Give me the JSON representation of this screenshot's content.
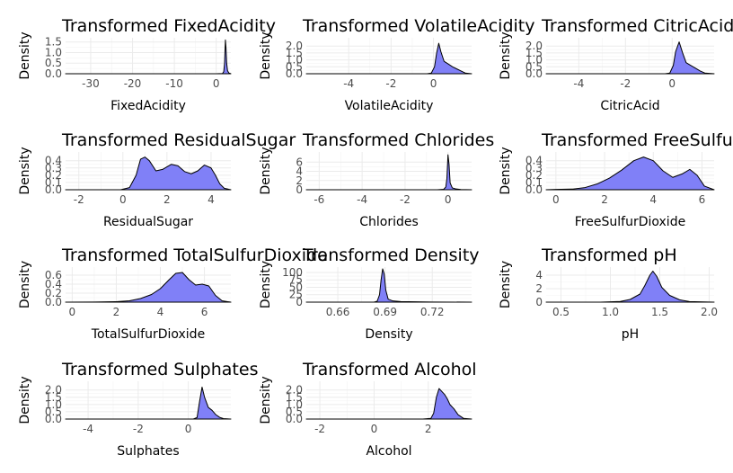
{
  "chart_data": [
    {
      "type": "area",
      "title": "Transformed FixedAcidity",
      "xlabel": "FixedAcidity",
      "ylabel": "Density",
      "xlim": [
        -36,
        3.5
      ],
      "ylim": [
        0,
        1.7
      ],
      "xticks": [
        -30,
        -20,
        -10,
        0
      ],
      "xtick_labels": [
        "-30",
        "-20",
        "-10",
        "0"
      ],
      "yticks": [
        0,
        0.5,
        1.0,
        1.5
      ],
      "ytick_labels": [
        "0.0",
        "0.5",
        "1.0",
        "1.5"
      ],
      "grid": true,
      "x": [
        -36,
        0,
        1.5,
        1.8,
        2.0,
        2.1,
        2.2,
        2.35,
        2.5,
        2.7,
        3.0,
        3.5
      ],
      "y": [
        0,
        0,
        0.01,
        0.1,
        0.5,
        1.1,
        1.6,
        1.2,
        0.5,
        0.15,
        0.04,
        0
      ]
    },
    {
      "type": "area",
      "title": "Transformed VolatileAcidity",
      "xlabel": "VolatileAcidity",
      "ylabel": "Density",
      "xlim": [
        -6,
        1.8
      ],
      "ylim": [
        0,
        2.6
      ],
      "xticks": [
        -4,
        -2,
        0
      ],
      "xtick_labels": [
        "-4",
        "-2",
        "0"
      ],
      "yticks": [
        0,
        0.5,
        1.0,
        1.5,
        2.0
      ],
      "ytick_labels": [
        "0.0",
        "0.5",
        "1.0",
        "1.5",
        "2.0"
      ],
      "grid": true,
      "x": [
        -6,
        -0.3,
        -0.1,
        0.05,
        0.15,
        0.25,
        0.35,
        0.5,
        0.7,
        0.9,
        1.1,
        1.3,
        1.5,
        1.8
      ],
      "y": [
        0,
        0,
        0.05,
        0.5,
        1.5,
        2.2,
        1.6,
        0.9,
        0.7,
        0.5,
        0.35,
        0.2,
        0.05,
        0
      ]
    },
    {
      "type": "area",
      "title": "Transformed CitricAcid",
      "xlabel": "CitricAcid",
      "ylabel": "Density",
      "xlim": [
        -5.4,
        1.8
      ],
      "ylim": [
        0,
        2.6
      ],
      "xticks": [
        -4,
        -2,
        0
      ],
      "xtick_labels": [
        "-4",
        "-2",
        "0"
      ],
      "yticks": [
        0,
        0.5,
        1.0,
        1.5,
        2.0
      ],
      "ytick_labels": [
        "0.0",
        "0.5",
        "1.0",
        "1.5",
        "2.0"
      ],
      "grid": true,
      "x": [
        -5.4,
        -0.3,
        -0.1,
        0.05,
        0.15,
        0.3,
        0.45,
        0.6,
        0.8,
        1.0,
        1.2,
        1.4,
        1.8
      ],
      "y": [
        0,
        0,
        0.05,
        0.6,
        1.6,
        2.3,
        1.5,
        0.8,
        0.6,
        0.4,
        0.2,
        0.05,
        0
      ]
    },
    {
      "type": "area",
      "title": "Transformed ResidualSugar",
      "xlabel": "ResidualSugar",
      "ylabel": "Density",
      "xlim": [
        -2.6,
        4.9
      ],
      "ylim": [
        0,
        0.52
      ],
      "xticks": [
        -2,
        0,
        2,
        4
      ],
      "xtick_labels": [
        "-2",
        "0",
        "2",
        "4"
      ],
      "yticks": [
        0,
        0.1,
        0.2,
        0.3,
        0.4
      ],
      "ytick_labels": [
        "0.0",
        "0.1",
        "0.2",
        "0.3",
        "0.4"
      ],
      "grid": true,
      "x": [
        -2.6,
        -0.1,
        0.3,
        0.6,
        0.8,
        1.0,
        1.2,
        1.5,
        1.8,
        2.2,
        2.5,
        2.8,
        3.1,
        3.4,
        3.7,
        4.0,
        4.2,
        4.4,
        4.6,
        4.9
      ],
      "y": [
        0,
        0,
        0.03,
        0.2,
        0.42,
        0.45,
        0.4,
        0.26,
        0.28,
        0.35,
        0.33,
        0.25,
        0.22,
        0.26,
        0.34,
        0.3,
        0.2,
        0.08,
        0.02,
        0
      ]
    },
    {
      "type": "area",
      "title": "Transformed Chlorides",
      "xlabel": "Chlorides",
      "ylabel": "Density",
      "xlim": [
        -6.6,
        1.1
      ],
      "ylim": [
        0,
        8.2
      ],
      "xticks": [
        -6,
        -4,
        -2,
        0
      ],
      "xtick_labels": [
        "-6",
        "-4",
        "-2",
        "0"
      ],
      "yticks": [
        0,
        2,
        4,
        6
      ],
      "ytick_labels": [
        "0",
        "2",
        "4",
        "6"
      ],
      "grid": true,
      "x": [
        -6.6,
        -0.5,
        -0.2,
        -0.1,
        -0.05,
        0,
        0.05,
        0.1,
        0.2,
        0.35,
        0.6,
        1.1
      ],
      "y": [
        0,
        0,
        0.1,
        0.6,
        2.5,
        7.6,
        5.5,
        1.5,
        0.4,
        0.2,
        0.05,
        0
      ]
    },
    {
      "type": "area",
      "title": "Transformed FreeSulfurDioxide",
      "xlabel": "FreeSulfurDioxide",
      "ylabel": "Density",
      "xlim": [
        -0.4,
        6.5
      ],
      "ylim": [
        0,
        0.52
      ],
      "xticks": [
        0,
        2,
        4,
        6
      ],
      "xtick_labels": [
        "0",
        "2",
        "4",
        "6"
      ],
      "yticks": [
        0,
        0.1,
        0.2,
        0.3,
        0.4
      ],
      "ytick_labels": [
        "0.0",
        "0.1",
        "0.2",
        "0.3",
        "0.4"
      ],
      "grid": true,
      "x": [
        -0.4,
        0,
        0.7,
        1.2,
        1.7,
        2.2,
        2.7,
        3.2,
        3.6,
        4.0,
        4.4,
        4.8,
        5.2,
        5.5,
        5.8,
        6.1,
        6.5
      ],
      "y": [
        0,
        0.005,
        0.01,
        0.03,
        0.08,
        0.16,
        0.27,
        0.4,
        0.45,
        0.4,
        0.26,
        0.17,
        0.22,
        0.28,
        0.2,
        0.05,
        0
      ]
    },
    {
      "type": "area",
      "title": "Transformed TotalSulfurDioxide",
      "xlabel": "TotalSulfurDioxide",
      "ylabel": "Density",
      "xlim": [
        -0.3,
        7.2
      ],
      "ylim": [
        0,
        0.78
      ],
      "xticks": [
        0,
        2,
        4,
        6
      ],
      "xtick_labels": [
        "0",
        "2",
        "4",
        "6"
      ],
      "yticks": [
        0,
        0.2,
        0.4,
        0.6
      ],
      "ytick_labels": [
        "0.0",
        "0.2",
        "0.4",
        "0.6"
      ],
      "grid": true,
      "x": [
        -0.3,
        1.0,
        2.0,
        2.6,
        3.1,
        3.6,
        4.0,
        4.4,
        4.7,
        5.0,
        5.3,
        5.6,
        5.9,
        6.2,
        6.5,
        6.8,
        7.2
      ],
      "y": [
        0,
        0.002,
        0.01,
        0.03,
        0.08,
        0.17,
        0.3,
        0.5,
        0.64,
        0.66,
        0.5,
        0.38,
        0.4,
        0.36,
        0.15,
        0.03,
        0
      ]
    },
    {
      "type": "area",
      "title": "Transformed Density",
      "xlabel": "Density",
      "ylabel": "Density",
      "xlim": [
        0.64,
        0.745
      ],
      "ylim": [
        0,
        118
      ],
      "xticks": [
        0.66,
        0.69,
        0.72
      ],
      "xtick_labels": [
        "0.66",
        "0.69",
        "0.72"
      ],
      "yticks": [
        0,
        25,
        50,
        75,
        100
      ],
      "ytick_labels": [
        "0",
        "25",
        "50",
        "75",
        "100"
      ],
      "grid": true,
      "x": [
        0.64,
        0.683,
        0.685,
        0.6865,
        0.6875,
        0.6885,
        0.6895,
        0.6905,
        0.692,
        0.695,
        0.7,
        0.72,
        0.745
      ],
      "y": [
        0,
        0,
        3,
        25,
        75,
        112,
        95,
        40,
        10,
        4,
        2,
        0.5,
        0
      ]
    },
    {
      "type": "area",
      "title": "Transformed pH",
      "xlabel": "pH",
      "ylabel": "Density",
      "xlim": [
        0.35,
        2.05
      ],
      "ylim": [
        0,
        5.2
      ],
      "xticks": [
        0.5,
        1.0,
        1.5,
        2.0
      ],
      "xtick_labels": [
        "0.5",
        "1.0",
        "1.5",
        "2.0"
      ],
      "yticks": [
        0,
        2,
        4
      ],
      "ytick_labels": [
        "0",
        "2",
        "4"
      ],
      "grid": true,
      "x": [
        0.35,
        0.9,
        1.1,
        1.2,
        1.3,
        1.35,
        1.4,
        1.43,
        1.47,
        1.52,
        1.6,
        1.7,
        1.8,
        2.05
      ],
      "y": [
        0,
        0,
        0.1,
        0.4,
        1.2,
        2.5,
        4.0,
        4.6,
        3.8,
        2.2,
        1.0,
        0.35,
        0.08,
        0
      ]
    },
    {
      "type": "area",
      "title": "Transformed Sulphates",
      "xlabel": "Sulphates",
      "ylabel": "Density",
      "xlim": [
        -4.9,
        1.7
      ],
      "ylim": [
        0,
        2.6
      ],
      "xticks": [
        -4,
        -2,
        0
      ],
      "xtick_labels": [
        "-4",
        "-2",
        "0"
      ],
      "yticks": [
        0,
        0.5,
        1.0,
        1.5,
        2.0
      ],
      "ytick_labels": [
        "0.0",
        "0.5",
        "1.0",
        "1.5",
        "2.0"
      ],
      "grid": true,
      "x": [
        -4.9,
        0.2,
        0.35,
        0.45,
        0.55,
        0.65,
        0.8,
        0.95,
        1.1,
        1.25,
        1.4,
        1.7
      ],
      "y": [
        0,
        0,
        0.1,
        1.2,
        2.2,
        1.5,
        0.8,
        0.6,
        0.3,
        0.12,
        0.03,
        0
      ]
    },
    {
      "type": "area",
      "title": "Transformed Alcohol",
      "xlabel": "Alcohol",
      "ylabel": "Density",
      "xlim": [
        -2.5,
        3.6
      ],
      "ylim": [
        0,
        2.6
      ],
      "xticks": [
        -2,
        0,
        2
      ],
      "xtick_labels": [
        "-2",
        "0",
        "2"
      ],
      "yticks": [
        0,
        0.5,
        1.0,
        1.5,
        2.0
      ],
      "ytick_labels": [
        "0.0",
        "0.5",
        "1.0",
        "1.5",
        "2.0"
      ],
      "grid": true,
      "x": [
        -2.5,
        1.8,
        2.1,
        2.2,
        2.3,
        2.4,
        2.5,
        2.6,
        2.7,
        2.8,
        2.95,
        3.1,
        3.3,
        3.6
      ],
      "y": [
        0,
        0,
        0.05,
        0.4,
        1.5,
        2.1,
        1.9,
        1.7,
        1.4,
        1.0,
        0.7,
        0.3,
        0.05,
        0
      ]
    }
  ]
}
